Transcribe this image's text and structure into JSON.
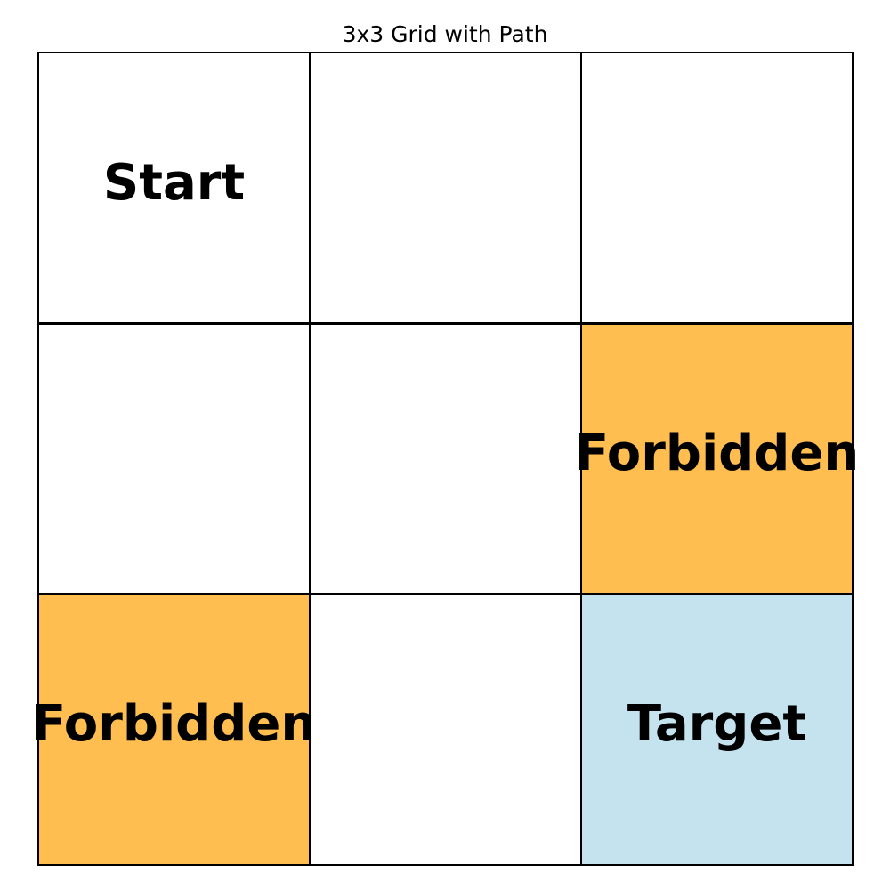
{
  "title": "3x3 Grid with Path",
  "colors": {
    "empty": "#ffffff",
    "forbidden": "#ffbe4f",
    "target": "#c5e3ee",
    "grid_line": "#000000"
  },
  "grid": {
    "rows": 3,
    "cols": 3,
    "cells": [
      {
        "row": 0,
        "col": 0,
        "label": "Start",
        "kind": "start"
      },
      {
        "row": 0,
        "col": 1,
        "label": "",
        "kind": "empty"
      },
      {
        "row": 0,
        "col": 2,
        "label": "",
        "kind": "empty"
      },
      {
        "row": 1,
        "col": 0,
        "label": "",
        "kind": "empty"
      },
      {
        "row": 1,
        "col": 1,
        "label": "",
        "kind": "empty"
      },
      {
        "row": 1,
        "col": 2,
        "label": "Forbidden",
        "kind": "forbidden"
      },
      {
        "row": 2,
        "col": 0,
        "label": "Forbidden",
        "kind": "forbidden"
      },
      {
        "row": 2,
        "col": 1,
        "label": "",
        "kind": "empty"
      },
      {
        "row": 2,
        "col": 2,
        "label": "Target",
        "kind": "target"
      }
    ]
  }
}
